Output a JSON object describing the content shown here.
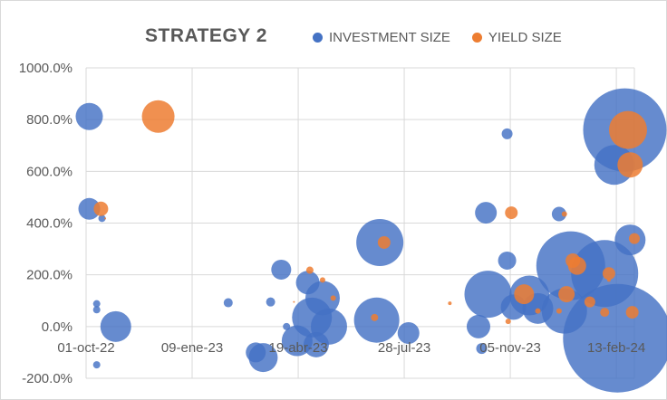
{
  "chart_data": {
    "type": "scatter",
    "title": "STRATEGY 2",
    "xlabel": "",
    "ylabel": "",
    "x_ticks": [
      "01-oct-22",
      "09-ene-23",
      "19-abr-23",
      "28-jul-23",
      "05-nov-23",
      "13-feb-24"
    ],
    "y_ticks": [
      "1000.0%",
      "800.0%",
      "600.0%",
      "400.0%",
      "200.0%",
      "0.0%",
      "-200.0%"
    ],
    "ylim": [
      -200,
      1000
    ],
    "xlim": [
      "2022-10-01",
      "2024-03-01"
    ],
    "grid": true,
    "legend_position": "top",
    "colors": {
      "investment": "#4472C4",
      "yield": "#ED7D31"
    },
    "series": [
      {
        "name": "INVESTMENT SIZE",
        "points": [
          {
            "x": "2022-10-04",
            "y": 812,
            "size": 15
          },
          {
            "x": "2022-10-04",
            "y": 455,
            "size": 12
          },
          {
            "x": "2022-10-11",
            "y": 88,
            "size": 4
          },
          {
            "x": "2022-10-11",
            "y": 65,
            "size": 4
          },
          {
            "x": "2022-10-11",
            "y": -148,
            "size": 4
          },
          {
            "x": "2022-10-16",
            "y": 418,
            "size": 4
          },
          {
            "x": "2022-10-29",
            "y": 0,
            "size": 17
          },
          {
            "x": "2023-02-12",
            "y": 92,
            "size": 5
          },
          {
            "x": "2023-03-10",
            "y": -100,
            "size": 11
          },
          {
            "x": "2023-03-17",
            "y": -120,
            "size": 16
          },
          {
            "x": "2023-03-24",
            "y": 95,
            "size": 5
          },
          {
            "x": "2023-04-03",
            "y": 220,
            "size": 11
          },
          {
            "x": "2023-04-08",
            "y": 0,
            "size": 4
          },
          {
            "x": "2023-04-18",
            "y": -55,
            "size": 17
          },
          {
            "x": "2023-04-28",
            "y": 170,
            "size": 13
          },
          {
            "x": "2023-05-02",
            "y": 35,
            "size": 22
          },
          {
            "x": "2023-05-06",
            "y": -70,
            "size": 14
          },
          {
            "x": "2023-05-12",
            "y": 110,
            "size": 19
          },
          {
            "x": "2023-05-18",
            "y": 0,
            "size": 20
          },
          {
            "x": "2023-07-02",
            "y": 25,
            "size": 25
          },
          {
            "x": "2023-07-05",
            "y": 325,
            "size": 26
          },
          {
            "x": "2023-08-01",
            "y": -25,
            "size": 12
          },
          {
            "x": "2023-10-06",
            "y": 0,
            "size": 13
          },
          {
            "x": "2023-10-09",
            "y": -85,
            "size": 6
          },
          {
            "x": "2023-10-13",
            "y": 440,
            "size": 12
          },
          {
            "x": "2023-10-15",
            "y": 125,
            "size": 26
          },
          {
            "x": "2023-11-02",
            "y": 745,
            "size": 6
          },
          {
            "x": "2023-11-02",
            "y": 255,
            "size": 10
          },
          {
            "x": "2023-11-08",
            "y": 75,
            "size": 14
          },
          {
            "x": "2023-11-23",
            "y": 120,
            "size": 22
          },
          {
            "x": "2023-12-01",
            "y": 70,
            "size": 17
          },
          {
            "x": "2023-12-21",
            "y": 435,
            "size": 8
          },
          {
            "x": "2023-12-26",
            "y": 60,
            "size": 25
          },
          {
            "x": "2024-01-01",
            "y": 235,
            "size": 38
          },
          {
            "x": "2024-02-02",
            "y": 205,
            "size": 37
          },
          {
            "x": "2024-02-11",
            "y": 625,
            "size": 22
          },
          {
            "x": "2024-02-14",
            "y": -45,
            "size": 60
          },
          {
            "x": "2024-02-21",
            "y": 760,
            "size": 46
          },
          {
            "x": "2024-02-26",
            "y": 335,
            "size": 17
          }
        ]
      },
      {
        "name": "YIELD SIZE",
        "points": [
          {
            "x": "2022-10-15",
            "y": 455,
            "size": 8
          },
          {
            "x": "2022-10-19",
            "y": 418,
            "size": 1
          },
          {
            "x": "2022-12-08",
            "y": 812,
            "size": 18
          },
          {
            "x": "2023-04-15",
            "y": 95,
            "size": 1
          },
          {
            "x": "2023-04-30",
            "y": 218,
            "size": 4
          },
          {
            "x": "2023-05-12",
            "y": 180,
            "size": 3
          },
          {
            "x": "2023-05-22",
            "y": 110,
            "size": 3
          },
          {
            "x": "2023-06-30",
            "y": 35,
            "size": 4
          },
          {
            "x": "2023-07-09",
            "y": 325,
            "size": 7
          },
          {
            "x": "2023-09-09",
            "y": 90,
            "size": 2
          },
          {
            "x": "2023-11-03",
            "y": 20,
            "size": 3
          },
          {
            "x": "2023-11-06",
            "y": 440,
            "size": 7
          },
          {
            "x": "2023-11-18",
            "y": 125,
            "size": 11
          },
          {
            "x": "2023-12-01",
            "y": 60,
            "size": 3
          },
          {
            "x": "2023-12-21",
            "y": 60,
            "size": 3
          },
          {
            "x": "2023-12-26",
            "y": 435,
            "size": 3
          },
          {
            "x": "2023-12-28",
            "y": 125,
            "size": 9
          },
          {
            "x": "2024-01-03",
            "y": 255,
            "size": 8
          },
          {
            "x": "2024-01-07",
            "y": 235,
            "size": 10
          },
          {
            "x": "2024-01-19",
            "y": 95,
            "size": 6
          },
          {
            "x": "2024-02-02",
            "y": 55,
            "size": 5
          },
          {
            "x": "2024-02-06",
            "y": 205,
            "size": 7
          },
          {
            "x": "2024-02-06",
            "y": 180,
            "size": 2
          },
          {
            "x": "2024-02-24",
            "y": 760,
            "size": 21
          },
          {
            "x": "2024-02-26",
            "y": 625,
            "size": 14
          },
          {
            "x": "2024-02-28",
            "y": 55,
            "size": 7
          },
          {
            "x": "2024-03-01",
            "y": 340,
            "size": 6
          }
        ]
      }
    ]
  }
}
